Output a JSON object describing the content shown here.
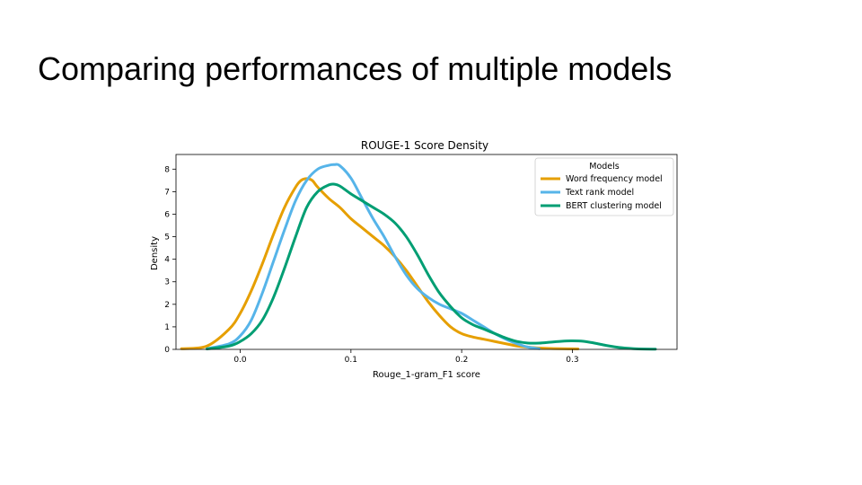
{
  "slide": {
    "title": "Comparing performances of multiple models"
  },
  "chart_data": {
    "type": "line",
    "title": "ROUGE-1 Score Density",
    "xlabel": "Rouge_1-gram_F1 score",
    "ylabel": "Density",
    "xlim": [
      -0.058,
      0.3945
    ],
    "ylim": [
      0,
      8.65
    ],
    "xticks": [
      0.0,
      0.1,
      0.2,
      0.3
    ],
    "xtick_labels": [
      "0.0",
      "0.1",
      "0.2",
      "0.3"
    ],
    "yticks": [
      0,
      1,
      2,
      3,
      4,
      5,
      6,
      7,
      8
    ],
    "ytick_labels": [
      "0",
      "1",
      "2",
      "3",
      "4",
      "5",
      "6",
      "7",
      "8"
    ],
    "grid": false,
    "legend": {
      "title": "Models",
      "position": "top-right"
    },
    "series": [
      {
        "name": "Word frequency model",
        "color": "#E69F00",
        "x": [
          -0.053,
          -0.03,
          -0.01,
          0.0,
          0.01,
          0.02,
          0.03,
          0.04,
          0.05,
          0.055,
          0.06,
          0.065,
          0.07,
          0.08,
          0.09,
          0.1,
          0.11,
          0.12,
          0.13,
          0.14,
          0.15,
          0.16,
          0.17,
          0.18,
          0.19,
          0.2,
          0.21,
          0.22,
          0.23,
          0.24,
          0.25,
          0.26,
          0.27,
          0.28,
          0.29,
          0.305
        ],
        "y": [
          0.03,
          0.15,
          0.9,
          1.6,
          2.6,
          3.8,
          5.1,
          6.3,
          7.2,
          7.5,
          7.58,
          7.5,
          7.2,
          6.7,
          6.3,
          5.8,
          5.4,
          5.0,
          4.6,
          4.1,
          3.5,
          2.8,
          2.1,
          1.5,
          1.0,
          0.7,
          0.55,
          0.45,
          0.35,
          0.25,
          0.15,
          0.1,
          0.06,
          0.04,
          0.03,
          0.02
        ]
      },
      {
        "name": "Text rank model",
        "color": "#56B4E9",
        "x": [
          -0.03,
          -0.01,
          0.0,
          0.01,
          0.02,
          0.03,
          0.04,
          0.05,
          0.06,
          0.07,
          0.08,
          0.085,
          0.09,
          0.1,
          0.11,
          0.12,
          0.13,
          0.14,
          0.15,
          0.16,
          0.17,
          0.18,
          0.19,
          0.2,
          0.21,
          0.22,
          0.23,
          0.24,
          0.25,
          0.26,
          0.27
        ],
        "y": [
          0.03,
          0.25,
          0.6,
          1.3,
          2.5,
          3.9,
          5.3,
          6.6,
          7.5,
          8.0,
          8.17,
          8.2,
          8.15,
          7.6,
          6.7,
          5.8,
          5.0,
          4.1,
          3.3,
          2.7,
          2.3,
          2.0,
          1.8,
          1.6,
          1.3,
          1.0,
          0.7,
          0.45,
          0.25,
          0.1,
          0.03
        ]
      },
      {
        "name": "BERT clustering model",
        "color": "#009E73",
        "x": [
          -0.03,
          -0.01,
          0.0,
          0.01,
          0.02,
          0.03,
          0.04,
          0.05,
          0.06,
          0.07,
          0.08,
          0.085,
          0.09,
          0.1,
          0.11,
          0.12,
          0.13,
          0.14,
          0.15,
          0.16,
          0.17,
          0.18,
          0.19,
          0.2,
          0.21,
          0.22,
          0.23,
          0.24,
          0.25,
          0.26,
          0.27,
          0.28,
          0.29,
          0.3,
          0.31,
          0.32,
          0.33,
          0.34,
          0.35,
          0.36,
          0.375
        ],
        "y": [
          0.02,
          0.15,
          0.35,
          0.7,
          1.3,
          2.3,
          3.6,
          5.0,
          6.3,
          7.0,
          7.3,
          7.33,
          7.25,
          6.9,
          6.6,
          6.3,
          6.0,
          5.6,
          5.0,
          4.2,
          3.3,
          2.5,
          1.9,
          1.4,
          1.1,
          0.9,
          0.7,
          0.5,
          0.35,
          0.28,
          0.28,
          0.32,
          0.36,
          0.38,
          0.36,
          0.28,
          0.18,
          0.1,
          0.05,
          0.02,
          0.01
        ]
      }
    ]
  }
}
